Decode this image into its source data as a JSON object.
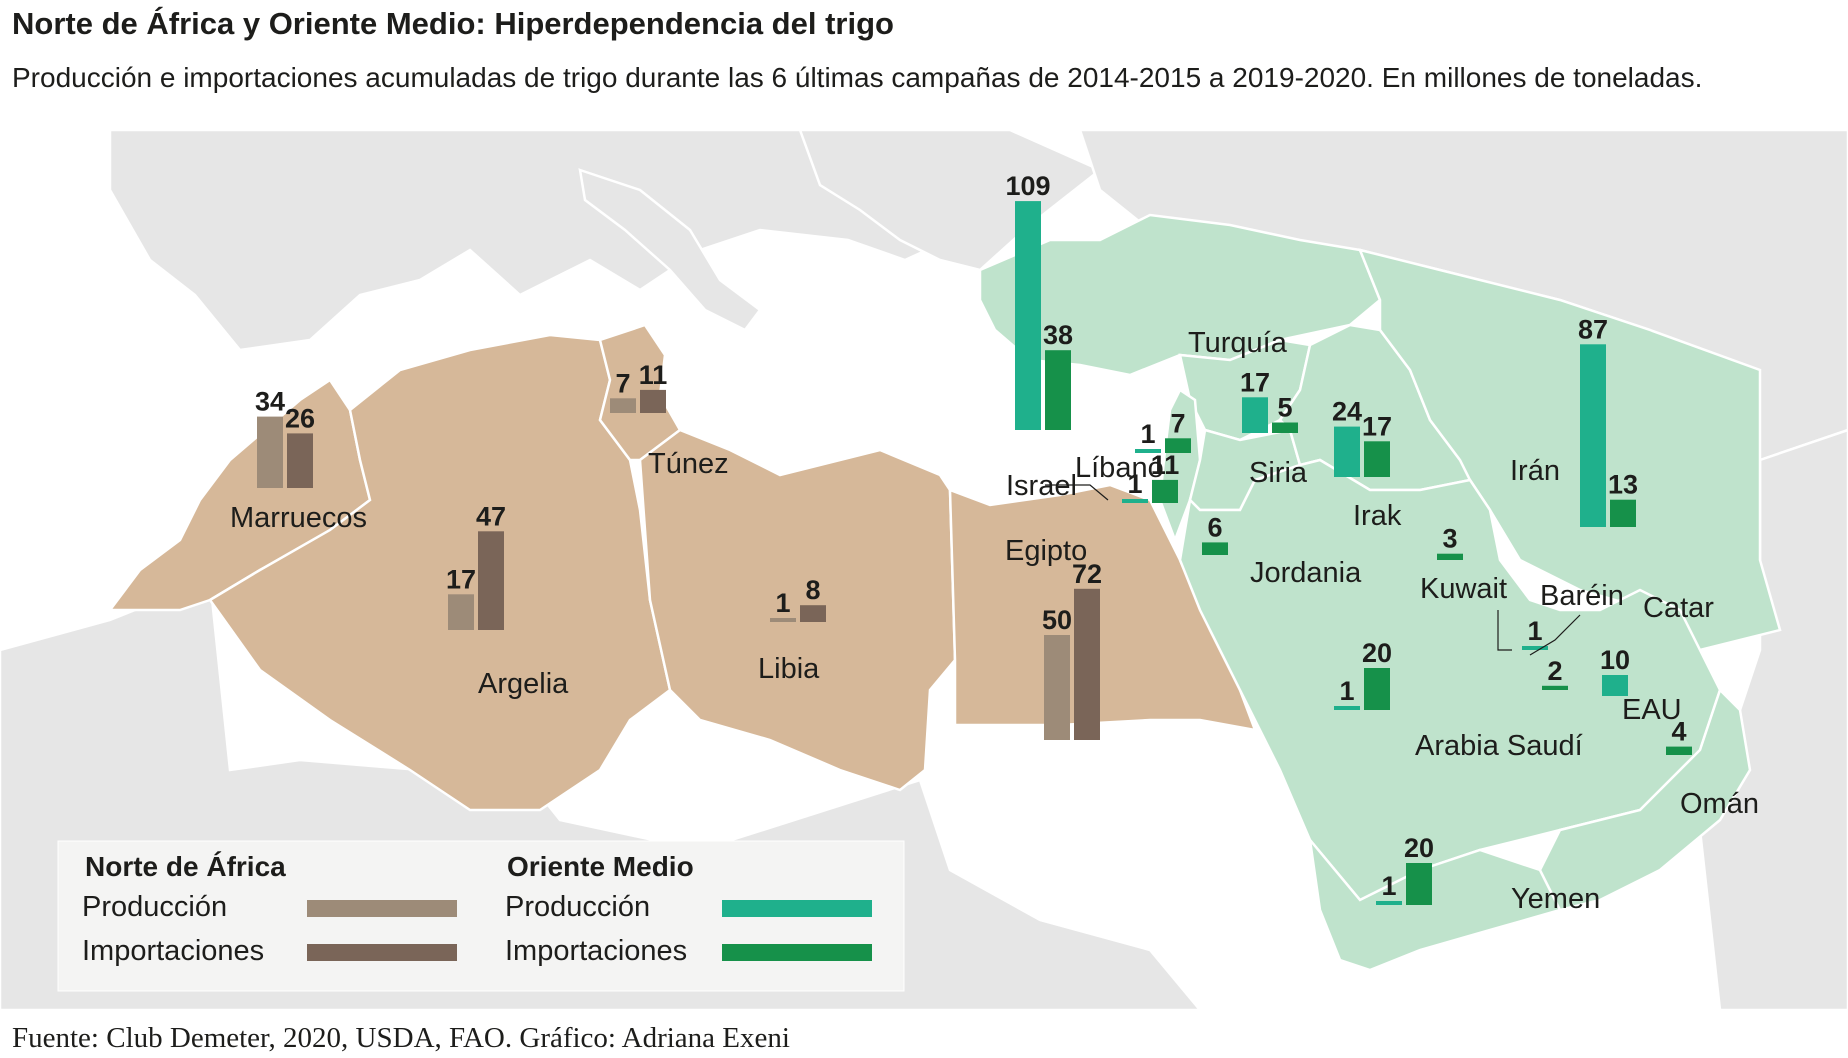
{
  "title": "Norte de África y Oriente Medio: Hiperdependencia del trigo",
  "subtitle": "Producción e importaciones acumuladas de trigo durante las 6 últimas campañas de 2014-2015 a 2019-2020. En millones de toneladas.",
  "source": "Fuente: Club Demeter, 2020, USDA, FAO. Gráfico: Adriana Exeni",
  "colors": {
    "sea": "#ffffff",
    "land_other": "#e6e6e6",
    "land_north_africa": "#d6b899",
    "land_middle_east": "#bfe3cc",
    "na_production": "#9d8b78",
    "na_imports": "#7a6558",
    "me_production": "#1fb08c",
    "me_imports": "#16914a"
  },
  "legend": {
    "north_africa": {
      "heading": "Norte de África",
      "production": "Producción",
      "imports": "Importaciones"
    },
    "middle_east": {
      "heading": "Oriente Medio",
      "production": "Producción",
      "imports": "Importaciones"
    }
  },
  "chart_data": {
    "type": "bar",
    "unit": "millones de toneladas",
    "series": [
      {
        "name": "Producción",
        "key": "production"
      },
      {
        "name": "Importaciones",
        "key": "imports"
      }
    ],
    "countries": [
      {
        "name": "Marruecos",
        "group": "north_africa",
        "production": 34,
        "imports": 26
      },
      {
        "name": "Argelia",
        "group": "north_africa",
        "production": 17,
        "imports": 47
      },
      {
        "name": "Túnez",
        "group": "north_africa",
        "production": 7,
        "imports": 11
      },
      {
        "name": "Libia",
        "group": "north_africa",
        "production": 1,
        "imports": 8
      },
      {
        "name": "Egipto",
        "group": "north_africa",
        "production": 50,
        "imports": 72
      },
      {
        "name": "Turquía",
        "group": "middle_east",
        "production": 109,
        "imports": 38
      },
      {
        "name": "Líbano",
        "group": "middle_east",
        "production": 1,
        "imports": 7
      },
      {
        "name": "Israel",
        "group": "middle_east",
        "production": 1,
        "imports": 11
      },
      {
        "name": "Siria",
        "group": "middle_east",
        "production": 17,
        "imports": 5
      },
      {
        "name": "Jordania",
        "group": "middle_east",
        "production": null,
        "imports": 6
      },
      {
        "name": "Irak",
        "group": "middle_east",
        "production": 24,
        "imports": 17
      },
      {
        "name": "Irán",
        "group": "middle_east",
        "production": 87,
        "imports": 13
      },
      {
        "name": "Kuwait",
        "group": "middle_east",
        "production": null,
        "imports": 3
      },
      {
        "name": "Baréin",
        "group": "middle_east",
        "production": 1,
        "imports": null
      },
      {
        "name": "Catar",
        "group": "middle_east",
        "production": null,
        "imports": 2
      },
      {
        "name": "EAU",
        "group": "middle_east",
        "production": 10,
        "imports": null
      },
      {
        "name": "Arabia Saudí",
        "group": "middle_east",
        "production": 1,
        "imports": 20
      },
      {
        "name": "Omán",
        "group": "middle_east",
        "production": null,
        "imports": 4
      },
      {
        "name": "Yemen",
        "group": "middle_east",
        "production": 1,
        "imports": 20
      }
    ]
  }
}
